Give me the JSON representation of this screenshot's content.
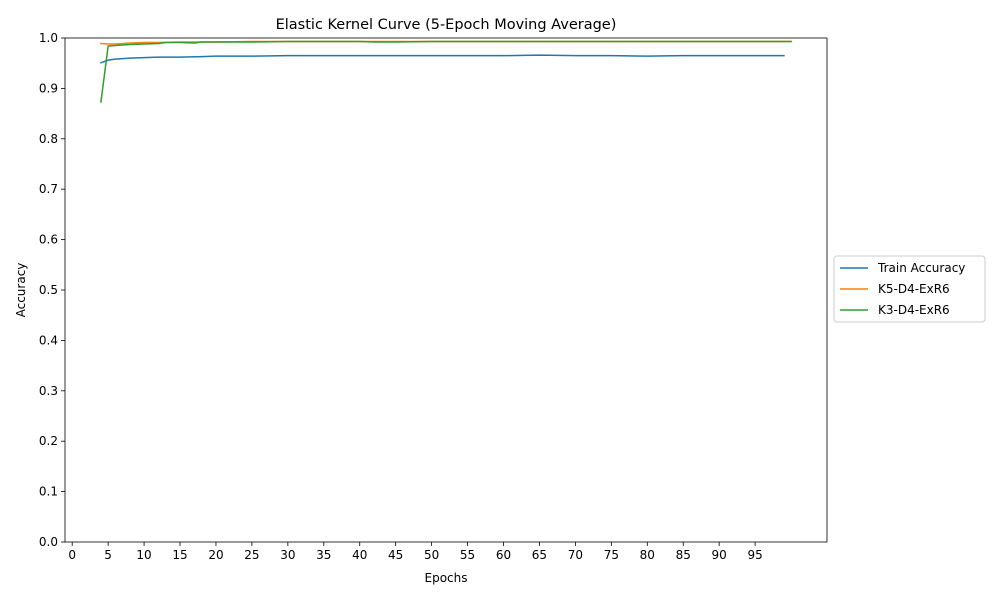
{
  "chart_data": {
    "type": "line",
    "title": "Elastic Kernel Curve (5-Epoch Moving Average)",
    "xlabel": "Epochs",
    "ylabel": "Accuracy",
    "xlim": [
      -1,
      105
    ],
    "ylim": [
      0.0,
      1.0
    ],
    "x_ticks": [
      "0",
      "5",
      "10",
      "15",
      "20",
      "25",
      "30",
      "35",
      "40",
      "45",
      "50",
      "55",
      "60",
      "65",
      "70",
      "75",
      "80",
      "85",
      "90",
      "95"
    ],
    "y_ticks": [
      "0.0",
      "0.1",
      "0.2",
      "0.3",
      "0.4",
      "0.5",
      "0.6",
      "0.7",
      "0.8",
      "0.9",
      "1.0"
    ],
    "legend_position": "center-right outside",
    "grid": false,
    "series": [
      {
        "name": "Train Accuracy",
        "color": "#1f77b4",
        "x": [
          4,
          5,
          6,
          8,
          10,
          12,
          15,
          18,
          20,
          25,
          30,
          35,
          40,
          45,
          50,
          55,
          60,
          65,
          70,
          75,
          80,
          85,
          90,
          95,
          99
        ],
        "y": [
          0.951,
          0.956,
          0.958,
          0.96,
          0.961,
          0.962,
          0.962,
          0.963,
          0.964,
          0.964,
          0.965,
          0.965,
          0.965,
          0.965,
          0.965,
          0.965,
          0.965,
          0.966,
          0.965,
          0.965,
          0.964,
          0.965,
          0.965,
          0.965,
          0.965
        ]
      },
      {
        "name": "K5-D4-ExR6",
        "color": "#ff7f0e",
        "x": [
          4,
          5,
          6,
          8,
          10,
          12,
          15,
          20,
          25,
          30,
          40,
          50,
          60,
          70,
          80,
          90,
          100
        ],
        "y": [
          0.989,
          0.988,
          0.988,
          0.99,
          0.991,
          0.991,
          0.992,
          0.992,
          0.993,
          0.993,
          0.993,
          0.993,
          0.993,
          0.993,
          0.993,
          0.993,
          0.993
        ]
      },
      {
        "name": "K3-D4-ExR6",
        "color": "#2ca02c",
        "x": [
          4,
          5,
          6,
          8,
          10,
          12,
          13,
          15,
          17,
          18,
          20,
          25,
          30,
          35,
          40,
          42,
          45,
          50,
          55,
          60,
          65,
          70,
          80,
          90,
          100
        ],
        "y": [
          0.873,
          0.984,
          0.985,
          0.987,
          0.988,
          0.989,
          0.991,
          0.991,
          0.99,
          0.992,
          0.992,
          0.992,
          0.993,
          0.993,
          0.993,
          0.992,
          0.992,
          0.993,
          0.993,
          0.993,
          0.993,
          0.993,
          0.993,
          0.993,
          0.993
        ]
      }
    ]
  }
}
